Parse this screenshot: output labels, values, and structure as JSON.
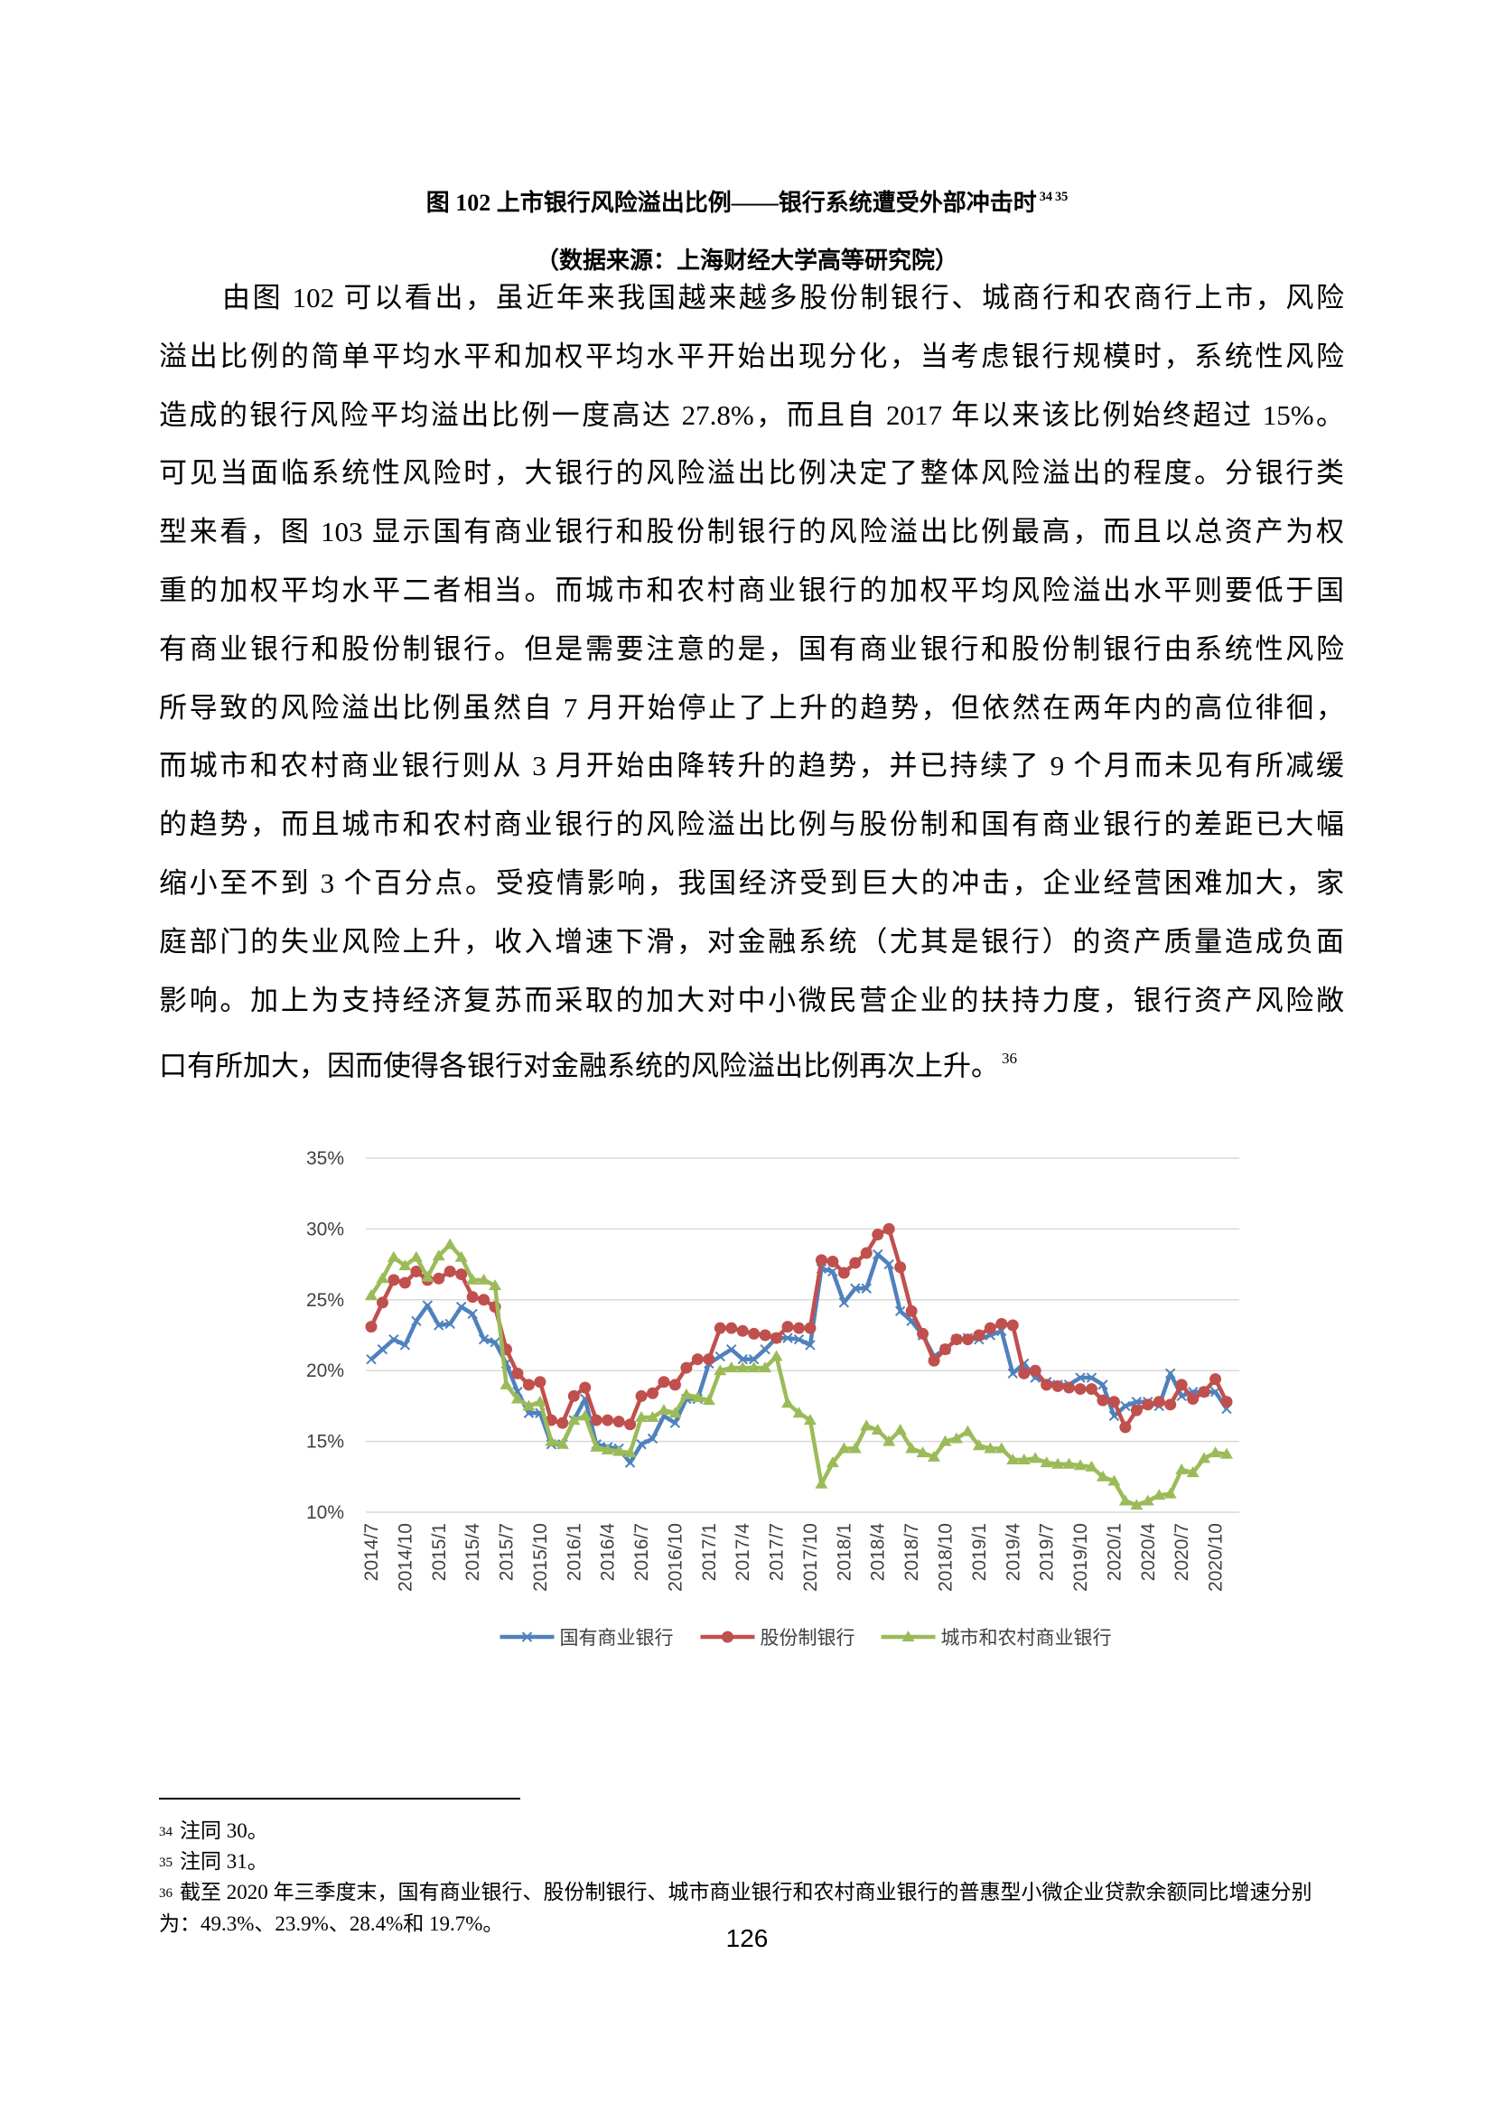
{
  "caption": {
    "title": "图 102  上市银行风险溢出比例——银行系统遭受外部冲击时",
    "refs": [
      "34",
      "35"
    ],
    "source": "（数据来源：上海财经大学高等研究院）"
  },
  "paragraph": {
    "lines": [
      "由图 102 可以看出，虽近年来我国越来越多股份制银行、城商行和农商行上市，风险",
      "溢出比例的简单平均水平和加权平均水平开始出现分化，当考虑银行规模时，系统性风险",
      "造成的银行风险平均溢出比例一度高达 27.8%，而且自 2017 年以来该比例始终超过 15%。",
      "可见当面临系统性风险时，大银行的风险溢出比例决定了整体风险溢出的程度。分银行类",
      "型来看，图 103 显示国有商业银行和股份制银行的风险溢出比例最高，而且以总资产为权",
      "重的加权平均水平二者相当。而城市和农村商业银行的加权平均风险溢出水平则要低于国",
      "有商业银行和股份制银行。但是需要注意的是，国有商业银行和股份制银行由系统性风险",
      "所导致的风险溢出比例虽然自 7 月开始停止了上升的趋势，但依然在两年内的高位徘徊，",
      "而城市和农村商业银行则从 3 月开始由降转升的趋势，并已持续了 9 个月而未见有所减缓",
      "的趋势，而且城市和农村商业银行的风险溢出比例与股份制和国有商业银行的差距已大幅",
      "缩小至不到 3 个百分点。受疫情影响，我国经济受到巨大的冲击，企业经营困难加大，家",
      "庭部门的失业风险上升，收入增速下滑，对金融系统（尤其是银行）的资产质量造成负面",
      "影响。加上为支持经济复苏而采取的加大对中小微民营企业的扶持力度，银行资产风险敞",
      "口有所加大，因而使得各银行对金融系统的风险溢出比例再次上升。"
    ],
    "ref": "36"
  },
  "chart_data": {
    "type": "line",
    "categories": [
      "2014/7",
      null,
      null,
      "2014/10",
      null,
      null,
      "2015/1",
      null,
      null,
      "2015/4",
      null,
      null,
      "2015/7",
      null,
      null,
      "2015/10",
      null,
      null,
      "2016/1",
      null,
      null,
      "2016/4",
      null,
      null,
      "2016/7",
      null,
      null,
      "2016/10",
      null,
      null,
      "2017/1",
      null,
      null,
      "2017/4",
      null,
      null,
      "2017/7",
      null,
      null,
      "2017/10",
      null,
      null,
      "2018/1",
      null,
      null,
      "2018/4",
      null,
      null,
      "2018/7",
      null,
      null,
      "2018/10",
      null,
      null,
      "2019/1",
      null,
      null,
      "2019/4",
      null,
      null,
      "2019/7",
      null,
      null,
      "2019/10",
      null,
      null,
      "2020/1",
      null,
      null,
      "2020/4",
      null,
      null,
      "2020/7",
      null,
      null,
      "2020/10",
      null
    ],
    "series": [
      {
        "name": "国有商业银行",
        "color": "#4f81bd",
        "marker": "x",
        "values": [
          20.8,
          21.5,
          22.2,
          21.8,
          23.5,
          24.6,
          23.2,
          23.3,
          24.5,
          24.0,
          22.2,
          22.0,
          20.5,
          18.5,
          17.0,
          17.0,
          14.8,
          14.8,
          16.5,
          18.0,
          14.8,
          14.6,
          14.5,
          13.5,
          14.8,
          15.2,
          16.8,
          16.3,
          18.0,
          18.0,
          20.5,
          21.0,
          21.5,
          20.8,
          20.8,
          21.5,
          22.3,
          22.3,
          22.2,
          21.8,
          27.2,
          27.0,
          24.8,
          25.8,
          25.8,
          28.2,
          27.5,
          24.2,
          23.5,
          22.5,
          21.0,
          21.5,
          22.2,
          22.3,
          22.2,
          22.5,
          22.8,
          19.8,
          20.5,
          19.5,
          19.2,
          19.0,
          19.0,
          19.5,
          19.5,
          19.0,
          16.8,
          17.5,
          17.8,
          17.8,
          17.5,
          19.8,
          18.2,
          18.5,
          18.5,
          18.5,
          17.3
        ]
      },
      {
        "name": "股份制银行",
        "color": "#c0504d",
        "marker": "circle",
        "values": [
          23.1,
          24.8,
          26.4,
          26.2,
          27.0,
          26.4,
          26.5,
          27.0,
          26.8,
          25.2,
          25.0,
          24.5,
          21.5,
          19.8,
          19.0,
          19.2,
          16.5,
          16.3,
          18.2,
          18.8,
          16.5,
          16.5,
          16.4,
          16.2,
          18.2,
          18.4,
          19.2,
          19.0,
          20.2,
          20.8,
          20.8,
          23.0,
          23.0,
          22.8,
          22.6,
          22.5,
          22.3,
          23.1,
          23.0,
          23.0,
          27.8,
          27.7,
          26.9,
          27.6,
          28.3,
          29.6,
          30.0,
          27.3,
          24.2,
          22.6,
          20.7,
          21.5,
          22.2,
          22.2,
          22.5,
          23.0,
          23.3,
          23.2,
          19.8,
          20.0,
          19.0,
          18.9,
          18.8,
          18.7,
          18.7,
          17.9,
          17.8,
          16.0,
          17.2,
          17.6,
          17.8,
          17.6,
          19.0,
          18.0,
          18.5,
          19.4,
          17.8
        ]
      },
      {
        "name": "城市和农村商业银行",
        "color": "#9bbb59",
        "marker": "triangle",
        "values": [
          25.3,
          26.5,
          28.0,
          27.4,
          28.0,
          26.6,
          28.1,
          28.9,
          28.0,
          26.4,
          26.4,
          26.0,
          19.0,
          18.0,
          17.5,
          17.8,
          15.0,
          14.8,
          16.5,
          16.8,
          14.6,
          14.4,
          14.3,
          14.2,
          16.7,
          16.7,
          17.2,
          17.0,
          18.3,
          18.1,
          17.9,
          20.0,
          20.2,
          20.2,
          20.2,
          20.2,
          21.0,
          17.7,
          17.0,
          16.5,
          12.0,
          13.5,
          14.5,
          14.5,
          16.1,
          15.8,
          15.0,
          15.8,
          14.5,
          14.2,
          13.9,
          15.0,
          15.2,
          15.7,
          14.7,
          14.5,
          14.5,
          13.7,
          13.7,
          13.8,
          13.5,
          13.4,
          13.4,
          13.3,
          13.2,
          12.5,
          12.2,
          10.8,
          10.5,
          10.8,
          11.2,
          11.3,
          13.0,
          12.8,
          13.8,
          14.2,
          14.1
        ]
      }
    ],
    "ylim": [
      10,
      35
    ],
    "yticks": [
      {
        "value": 10,
        "label": "10%"
      },
      {
        "value": 15,
        "label": "15%"
      },
      {
        "value": 20,
        "label": "20%"
      },
      {
        "value": 25,
        "label": "25%"
      },
      {
        "value": 30,
        "label": "30%"
      },
      {
        "value": 35,
        "label": "35%"
      }
    ],
    "grid": true,
    "legend": "bottom"
  },
  "footnotes": [
    {
      "mark": "34",
      "text": "注同 30。"
    },
    {
      "mark": "35",
      "text": "注同 31。"
    },
    {
      "mark": "36",
      "text": "截至 2020 年三季度末，国有商业银行、股份制银行、城市商业银行和农村商业银行的普惠型小微企业贷款余额同比增速分别为：49.3%、23.9%、28.4%和 19.7%。"
    }
  ],
  "page_number": "126"
}
